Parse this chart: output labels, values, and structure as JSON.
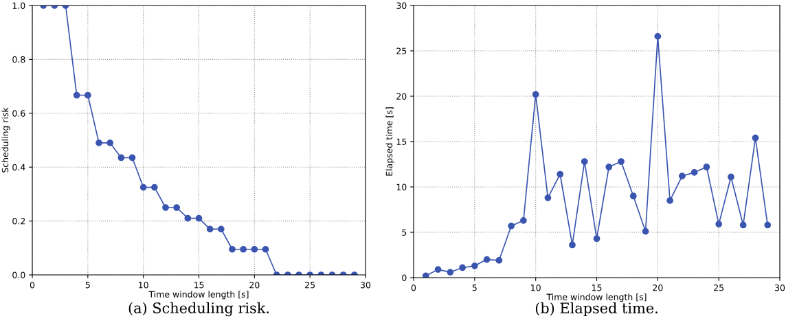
{
  "chart_data": [
    {
      "type": "line",
      "xlabel": "Time window length [s]",
      "ylabel": "Scheduling risk",
      "annotations": [
        "(a) Scheduling risk."
      ],
      "x": [
        1,
        2,
        3,
        4,
        5,
        6,
        7,
        8,
        9,
        10,
        11,
        12,
        13,
        14,
        15,
        16,
        17,
        18,
        19,
        20,
        21,
        22,
        23,
        24,
        25,
        26,
        27,
        28,
        29
      ],
      "series": [
        {
          "color": "#3a55b0",
          "values": [
            1,
            1,
            1,
            0.667,
            0.667,
            0.49,
            0.49,
            0.435,
            0.435,
            0.325,
            0.325,
            0.25,
            0.25,
            0.21,
            0.21,
            0.17,
            0.17,
            0.095,
            0.095,
            0.095,
            0.095,
            0,
            0,
            0,
            0,
            0,
            0,
            0,
            0
          ]
        }
      ],
      "xlim": [
        0,
        30
      ],
      "xticks": [
        0,
        5,
        10,
        15,
        20,
        25,
        30
      ],
      "ylim": [
        0,
        1
      ],
      "yticks": [
        {
          "value": 0,
          "label": "0.0"
        },
        {
          "value": 0.2,
          "label": "0.2"
        },
        {
          "value": 0.4,
          "label": "0.4"
        },
        {
          "value": 0.6,
          "label": "0.6"
        },
        {
          "value": 0.8,
          "label": "0.8"
        },
        {
          "value": 1,
          "label": "1.0"
        }
      ],
      "grid": true,
      "marker": "circle",
      "line_style": "solid"
    },
    {
      "type": "line",
      "xlabel": "Time window length [s]",
      "ylabel": "Elapsed time [s]",
      "annotations": [
        "(b) Elapsed time."
      ],
      "x": [
        1,
        2,
        3,
        4,
        5,
        6,
        7,
        8,
        9,
        10,
        11,
        12,
        13,
        14,
        15,
        16,
        17,
        18,
        19,
        20,
        21,
        22,
        23,
        24,
        25,
        26,
        27,
        28,
        29
      ],
      "series": [
        {
          "color": "#3a55b0",
          "values": [
            0.2,
            0.9,
            0.6,
            1.1,
            1.3,
            2.0,
            1.9,
            5.7,
            6.3,
            20.2,
            8.8,
            11.4,
            3.6,
            12.8,
            4.3,
            12.2,
            12.8,
            9.0,
            5.1,
            26.6,
            8.5,
            11.2,
            11.6,
            12.2,
            5.9,
            11.1,
            5.8,
            15.4,
            5.8
          ]
        }
      ],
      "xlim": [
        0,
        30
      ],
      "xticks": [
        0,
        5,
        10,
        15,
        20,
        25,
        30
      ],
      "ylim": [
        0,
        30
      ],
      "yticks": [
        0,
        5,
        10,
        15,
        20,
        25,
        30
      ],
      "grid": true,
      "marker": "circle",
      "line_style": "solid"
    }
  ]
}
